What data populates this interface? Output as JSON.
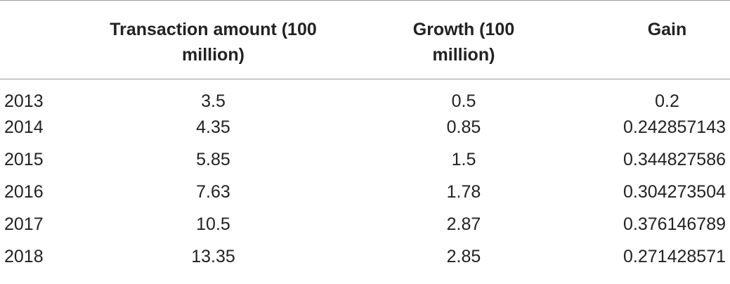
{
  "table": {
    "headers": {
      "year": "",
      "transaction_line1": "Transaction amount (100",
      "transaction_line2": "million)",
      "growth_line1": "Growth (100",
      "growth_line2": "million)",
      "gain": "Gain"
    },
    "rows": [
      {
        "year": "2013",
        "transaction": "3.5",
        "growth": "0.5",
        "gain": "0.2"
      },
      {
        "year": "2014",
        "transaction": "4.35",
        "growth": "0.85",
        "gain": "0.242857143"
      },
      {
        "year": "2015",
        "transaction": "5.85",
        "growth": "1.5",
        "gain": "0.344827586"
      },
      {
        "year": "2016",
        "transaction": "7.63",
        "growth": "1.78",
        "gain": "0.304273504"
      },
      {
        "year": "2017",
        "transaction": "10.5",
        "growth": "2.87",
        "gain": "0.376146789"
      },
      {
        "year": "2018",
        "transaction": "13.35",
        "growth": "2.85",
        "gain": "0.271428571"
      }
    ]
  }
}
